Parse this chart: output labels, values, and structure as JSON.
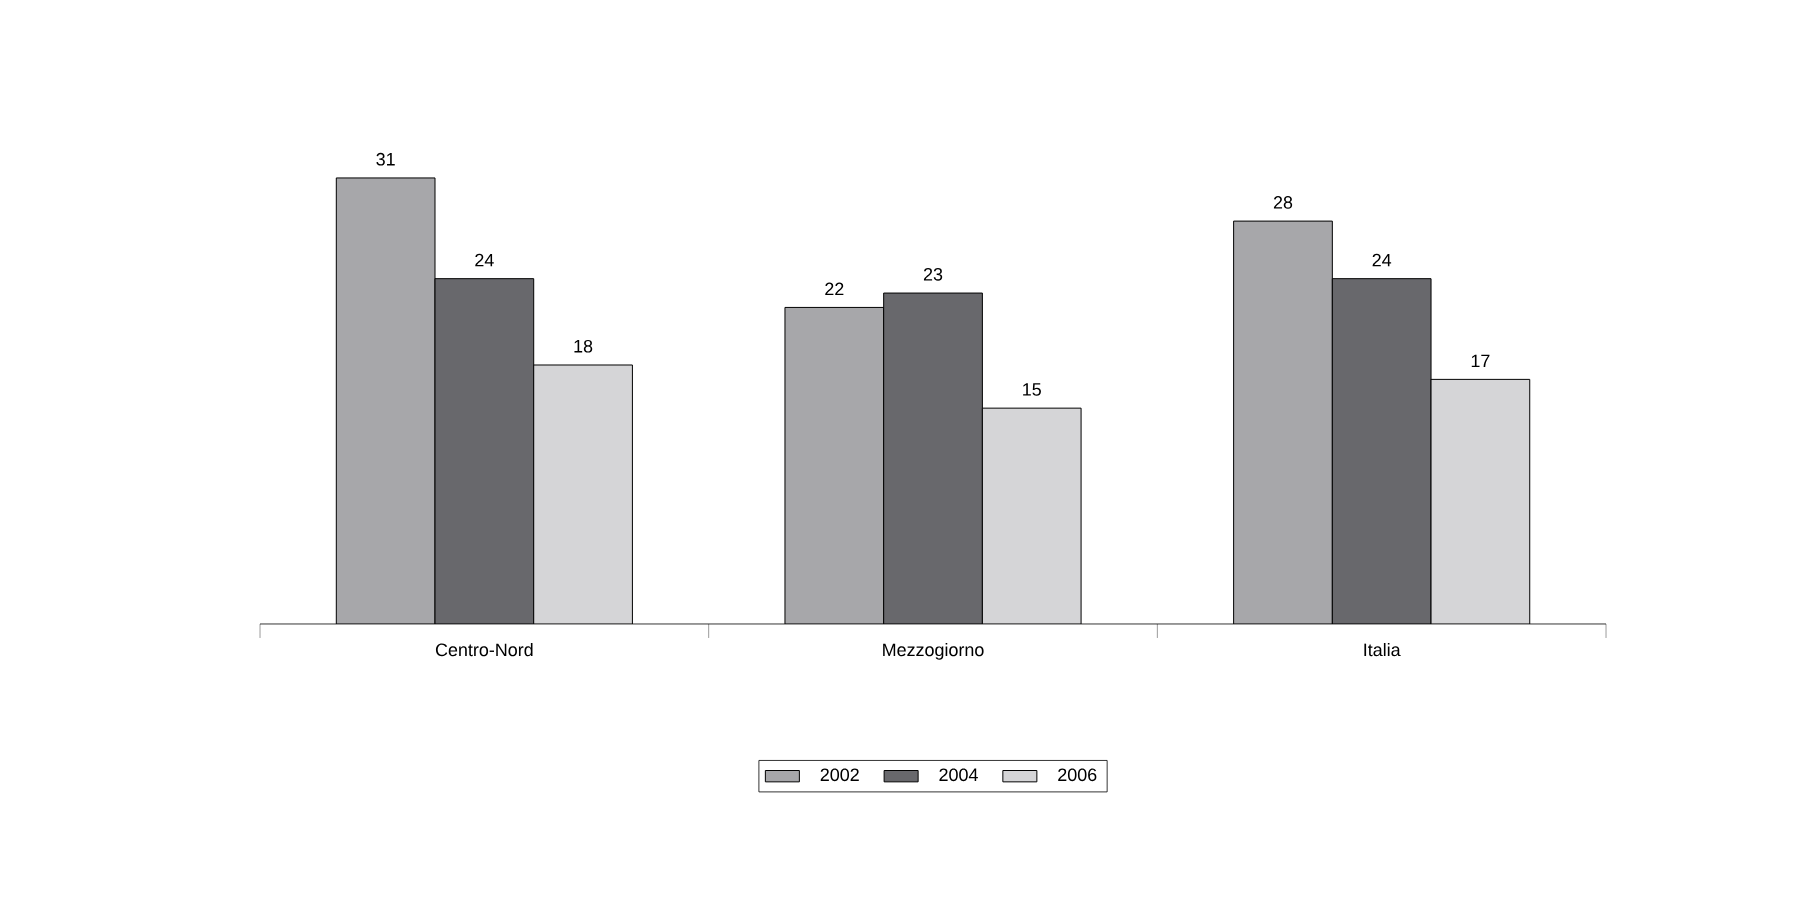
{
  "chart_data": {
    "type": "bar",
    "categories": [
      "Centro-Nord",
      "Mezzogiorno",
      "Italia"
    ],
    "series": [
      {
        "name": "2002",
        "color": "#a7a7aa",
        "values": [
          31,
          22,
          28
        ]
      },
      {
        "name": "2004",
        "color": "#68686c",
        "values": [
          24,
          23,
          24
        ]
      },
      {
        "name": "2006",
        "color": "#d5d5d7",
        "values": [
          18,
          15,
          17
        ]
      }
    ],
    "data_labels": true,
    "legend": "bottom"
  }
}
